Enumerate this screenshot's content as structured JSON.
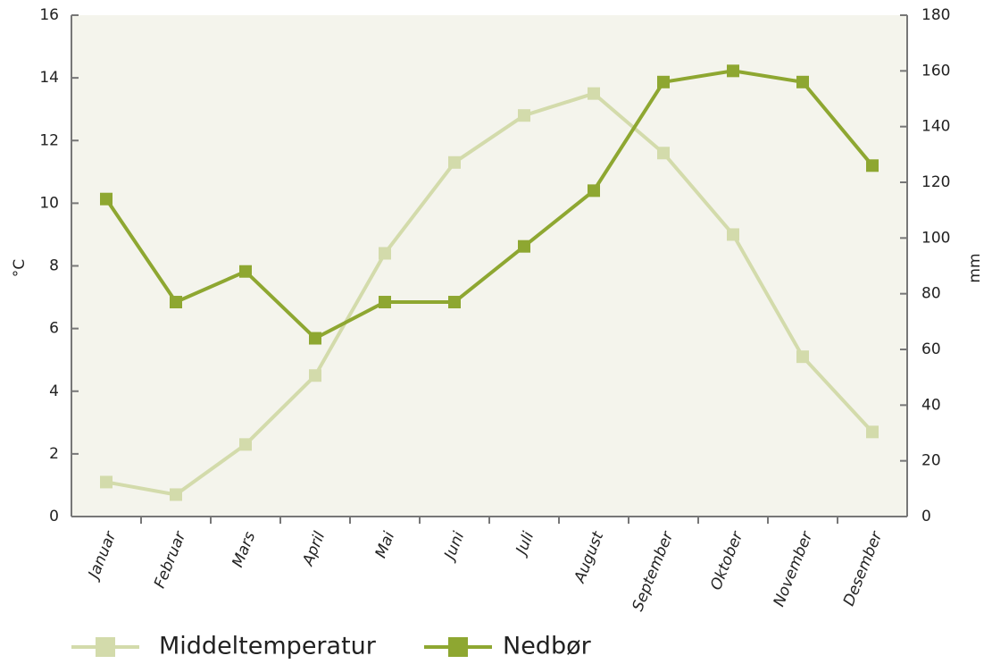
{
  "chart_data": {
    "type": "line",
    "categories": [
      "Januar",
      "Februar",
      "Mars",
      "April",
      "Mai",
      "Juni",
      "Juli",
      "August",
      "September",
      "Oktober",
      "November",
      "Desember"
    ],
    "series": [
      {
        "name": "Middeltemperatur",
        "color": "#d3dbab",
        "values": [
          1.1,
          0.7,
          2.3,
          4.5,
          8.4,
          11.3,
          12.8,
          13.5,
          11.6,
          9.0,
          5.1,
          2.7
        ]
      },
      {
        "name": "Nedbør",
        "color": "#8ea731",
        "axis": "y2",
        "values": [
          114,
          77,
          88,
          64,
          77,
          77,
          97,
          117,
          156,
          160,
          156,
          126
        ]
      }
    ],
    "ylabel": "°C",
    "y2label": "mm",
    "ylim": [
      0,
      16
    ],
    "yticks": [
      0,
      2,
      4,
      6,
      8,
      10,
      12,
      14,
      16
    ],
    "y2lim": [
      0,
      180
    ],
    "y2ticks": [
      0,
      20,
      40,
      60,
      80,
      100,
      120,
      140,
      160,
      180
    ]
  }
}
